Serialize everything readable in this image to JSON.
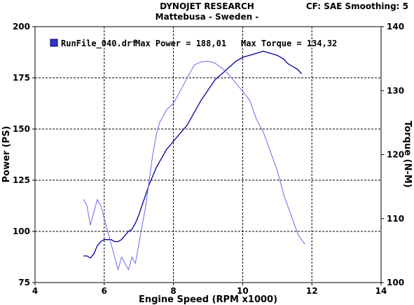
{
  "header": {
    "title_line1": "DYNOJET RESEARCH",
    "title_line2": "Mattebusa - Sweden -",
    "cf_info": "CF: SAE  Smoothing: 5"
  },
  "chart_data": {
    "type": "line",
    "xlabel": "Engine Speed (RPM x1000)",
    "ylabel_left": "Power (PS)",
    "ylabel_right": "Torque (N-M)",
    "xlim": [
      4,
      14
    ],
    "ylim_left": [
      75,
      200
    ],
    "ylim_right": [
      100,
      140
    ],
    "x_ticks": [
      4,
      6,
      8,
      10,
      12,
      14
    ],
    "y_left_ticks": [
      75,
      100,
      125,
      150,
      175,
      200
    ],
    "y_right_ticks": [
      100,
      110,
      120,
      130,
      140
    ],
    "grid": "dashed at x ticks and left-axis y ticks",
    "legend": {
      "run_file": "RunFile_040.drf",
      "max_power_text": "Max Power = 188,01",
      "max_torque_text": "Max Torque = 134,32",
      "placement": "top-left"
    },
    "series": [
      {
        "axis": "left",
        "color": "#000099",
        "x": [
          5.4,
          5.5,
          5.6,
          5.7,
          5.8,
          5.9,
          6.0,
          6.1,
          6.2,
          6.3,
          6.4,
          6.5,
          6.6,
          6.7,
          6.8,
          6.9,
          7.0,
          7.1,
          7.2,
          7.3,
          7.4,
          7.5,
          7.6,
          7.7,
          7.8,
          7.9,
          8.0,
          8.2,
          8.4,
          8.6,
          8.8,
          9.0,
          9.2,
          9.4,
          9.6,
          9.8,
          10.0,
          10.2,
          10.4,
          10.6,
          10.8,
          11.0,
          11.2,
          11.3,
          11.4,
          11.5,
          11.6,
          11.7
        ],
        "y": [
          88,
          88,
          87,
          89,
          93,
          95,
          96,
          96,
          96,
          95,
          95,
          96,
          98,
          100,
          101,
          104,
          108,
          113,
          118,
          123,
          127,
          131,
          134,
          137,
          140,
          142,
          144,
          148,
          152,
          158,
          164,
          169,
          174,
          177,
          180,
          183,
          185,
          186,
          187,
          188,
          187,
          186,
          184,
          182,
          181,
          180,
          179,
          177
        ]
      },
      {
        "axis": "right",
        "color": "#6a6af0",
        "x": [
          5.4,
          5.5,
          5.6,
          5.7,
          5.8,
          5.9,
          6.0,
          6.1,
          6.2,
          6.3,
          6.4,
          6.5,
          6.6,
          6.7,
          6.8,
          6.9,
          7.0,
          7.1,
          7.2,
          7.3,
          7.4,
          7.5,
          7.6,
          7.7,
          7.8,
          7.9,
          8.0,
          8.2,
          8.4,
          8.6,
          8.8,
          9.0,
          9.2,
          9.4,
          9.6,
          9.8,
          10.0,
          10.2,
          10.4,
          10.6,
          10.8,
          11.0,
          11.2,
          11.4,
          11.6,
          11.8
        ],
        "y": [
          113,
          112,
          109,
          111,
          113,
          112,
          110,
          108,
          106,
          104,
          102,
          104,
          103,
          102,
          104,
          103,
          106,
          109,
          112,
          116,
          120,
          123,
          125,
          126,
          127,
          127.5,
          128,
          130,
          132,
          134,
          134.5,
          134.6,
          134.3,
          133.5,
          132.5,
          131.2,
          129.9,
          128.5,
          125.5,
          123.5,
          120.5,
          117.5,
          113.5,
          110.5,
          107.5,
          106
        ]
      }
    ]
  }
}
